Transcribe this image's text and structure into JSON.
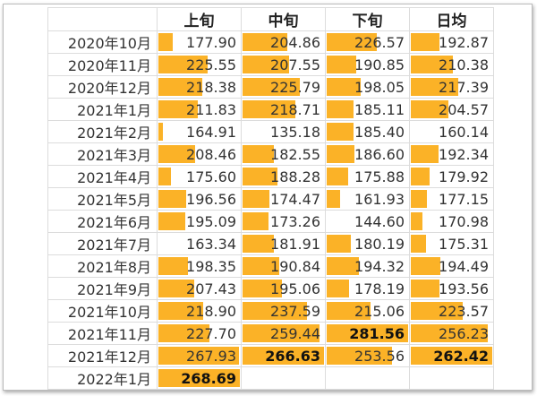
{
  "chart_data": {
    "type": "table",
    "title": "",
    "columns": [
      "上旬",
      "中旬",
      "下旬",
      "日均"
    ],
    "rows": [
      {
        "label": "2020年10月",
        "values": [
          177.9,
          204.86,
          226.57,
          192.87
        ]
      },
      {
        "label": "2020年11月",
        "values": [
          225.55,
          207.55,
          190.85,
          210.38
        ]
      },
      {
        "label": "2020年12月",
        "values": [
          218.38,
          225.79,
          198.05,
          217.39
        ]
      },
      {
        "label": "2021年1月",
        "values": [
          211.83,
          218.71,
          185.11,
          204.57
        ]
      },
      {
        "label": "2021年2月",
        "values": [
          164.91,
          135.18,
          185.4,
          160.14
        ]
      },
      {
        "label": "2021年3月",
        "values": [
          208.46,
          182.55,
          186.6,
          192.34
        ]
      },
      {
        "label": "2021年4月",
        "values": [
          175.6,
          188.28,
          175.88,
          179.92
        ]
      },
      {
        "label": "2021年5月",
        "values": [
          196.56,
          174.47,
          161.93,
          177.15
        ]
      },
      {
        "label": "2021年6月",
        "values": [
          195.09,
          173.26,
          144.6,
          170.98
        ]
      },
      {
        "label": "2021年7月",
        "values": [
          163.34,
          181.91,
          180.19,
          175.31
        ]
      },
      {
        "label": "2021年8月",
        "values": [
          198.35,
          190.84,
          194.32,
          194.49
        ]
      },
      {
        "label": "2021年9月",
        "values": [
          207.43,
          195.06,
          178.19,
          193.56
        ]
      },
      {
        "label": "2021年10月",
        "values": [
          218.9,
          237.59,
          215.06,
          223.57
        ]
      },
      {
        "label": "2021年11月",
        "values": [
          227.7,
          259.44,
          281.56,
          256.23
        ]
      },
      {
        "label": "2021年12月",
        "values": [
          267.93,
          266.63,
          253.56,
          262.42
        ]
      },
      {
        "label": "2022年1月",
        "values": [
          268.69,
          null,
          null,
          null
        ]
      }
    ],
    "bar_color": "#fbb227",
    "highlight": "max value per column shown in bold"
  }
}
